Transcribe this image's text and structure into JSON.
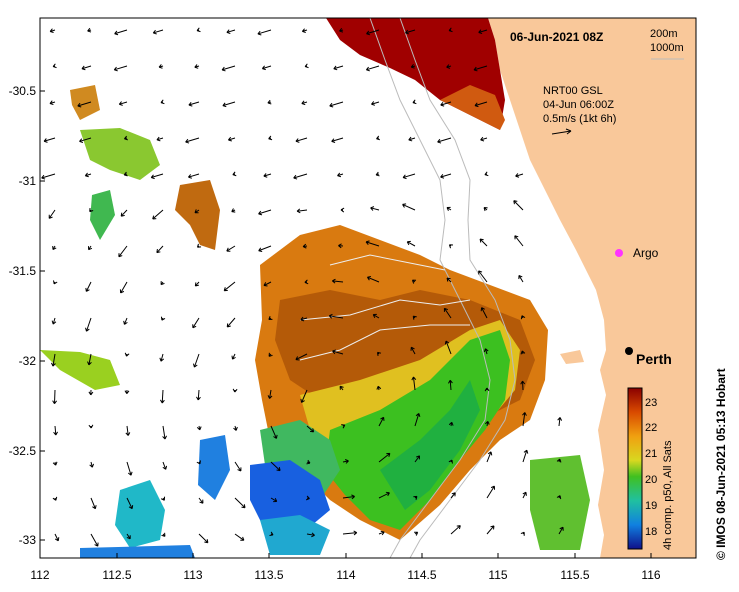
{
  "map": {
    "timestamp": "06-Jun-2021 08Z",
    "contour_legend": [
      "200m",
      "1000m"
    ],
    "current_info": {
      "product": "NRT00 GSL",
      "time": "04-Jun 06:00Z",
      "scale": "0.5m/s (1kt 6h)"
    },
    "argo_label": "Argo",
    "city_label": "Perth",
    "credit": "IMOS 08-Jun-2021 05:13 Hobart",
    "colorbar": {
      "title": "4h comp. p50, All Sats",
      "ticks": [
        "23",
        "22",
        "21",
        "20",
        "19",
        "18"
      ]
    },
    "x_ticks": [
      "112",
      "112.5",
      "113",
      "113.5",
      "114",
      "114.5",
      "115",
      "115.5",
      "116"
    ],
    "y_ticks": [
      "-30.5",
      "-31",
      "-31.5",
      "-32",
      "-32.5",
      "-33"
    ],
    "colors": {
      "land": "#f9c89a",
      "sst_warm": "#a00000",
      "sst_orange": "#d97a10",
      "sst_yellow": "#e8c020",
      "sst_green": "#3cc020",
      "sst_cyan": "#20b8c8",
      "sst_blue": "#1040e0",
      "argo": "#ff33ff"
    }
  }
}
